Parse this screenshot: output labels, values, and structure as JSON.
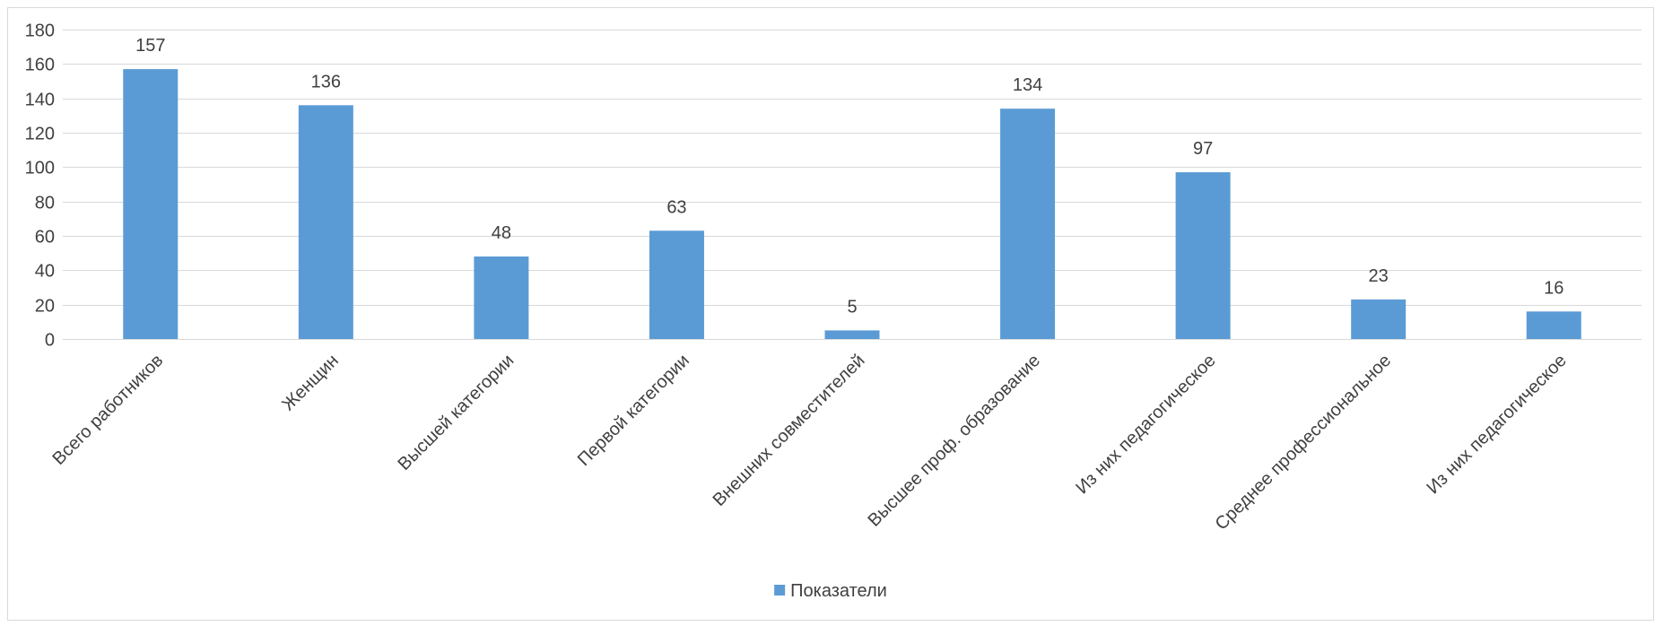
{
  "chart_data": {
    "type": "bar",
    "title": "",
    "xlabel": "",
    "ylabel": "",
    "categories": [
      "Всего работников",
      "Женщин",
      "Высшей категории",
      "Первой категории",
      "Внешних совместителей",
      "Высшее проф. образование",
      "Из них педагогическое",
      "Среднее профессиональное",
      "Из них педагогическое"
    ],
    "series": [
      {
        "name": "Показатели",
        "values": [
          157,
          136,
          48,
          63,
          5,
          134,
          97,
          23,
          16
        ]
      }
    ],
    "ylim": [
      0,
      180
    ],
    "yticks": [
      0,
      20,
      40,
      60,
      80,
      100,
      120,
      140,
      160,
      180
    ],
    "grid": true,
    "data_labels": true,
    "legend_position": "bottom",
    "colors": {
      "bar": "#5B9BD5",
      "grid": "#D9D9D9",
      "text": "#404040",
      "border": "#D9D9D9"
    }
  }
}
